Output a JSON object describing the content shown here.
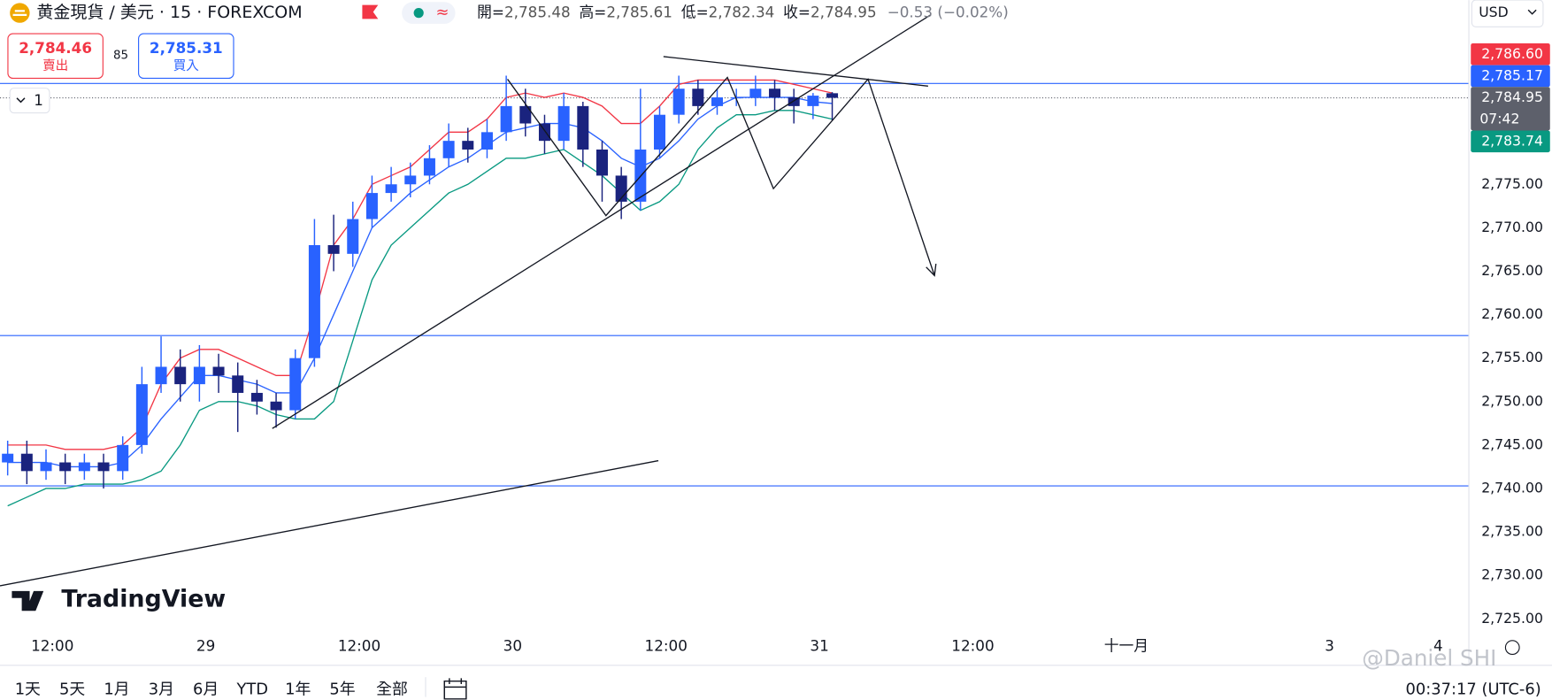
{
  "chart_data": {
    "type": "candlestick",
    "title": "黄金現貨 / 美元 · 15 · FOREXCOM",
    "x": [
      8.5,
      10,
      11.5,
      13,
      14.5,
      16,
      17.5,
      19,
      20.5,
      22,
      23.5,
      25,
      26.5,
      28,
      29.5,
      31,
      32.5,
      34,
      35.5,
      37,
      38.5,
      40,
      41.5,
      43,
      44.5,
      46,
      47.5,
      49,
      50.5,
      52,
      53.5,
      55,
      56.5,
      58,
      59.5,
      61,
      62.5,
      64,
      65.5,
      67,
      68.5,
      70,
      71.5,
      73
    ],
    "open": [
      2743,
      2744,
      2742,
      2743,
      2742,
      2743,
      2742,
      2745,
      2752,
      2754,
      2752,
      2754,
      2753,
      2751,
      2750,
      2749,
      2755,
      2768,
      2767,
      2771,
      2774,
      2775,
      2776,
      2778,
      2780,
      2779,
      2781,
      2784,
      2782,
      2780,
      2784,
      2779,
      2776,
      2773,
      2779,
      2783,
      2786,
      2784,
      2785,
      2785,
      2786,
      2785,
      2784,
      2785.48
    ],
    "high": [
      2745.5,
      2745.5,
      2744.5,
      2744,
      2744,
      2744,
      2746,
      2754,
      2757.5,
      2756,
      2756.5,
      2755.5,
      2754.5,
      2752.5,
      2751,
      2756,
      2771,
      2771.5,
      2773,
      2776,
      2777,
      2777.5,
      2779.5,
      2782,
      2781.5,
      2782.5,
      2787.5,
      2786,
      2783,
      2785.5,
      2784.5,
      2780,
      2777,
      2786,
      2784,
      2787.5,
      2787,
      2786,
      2786,
      2787.5,
      2787,
      2786,
      2785.5,
      2785.61
    ],
    "low": [
      2741.5,
      2740.5,
      2741,
      2740.5,
      2741,
      2740,
      2741,
      2744,
      2751,
      2750,
      2750,
      2751,
      2746.5,
      2748.5,
      2747,
      2748,
      2754,
      2765,
      2765.5,
      2770,
      2773,
      2773.5,
      2775,
      2777,
      2777.5,
      2778,
      2780,
      2780.5,
      2778.5,
      2779,
      2777,
      2773,
      2771,
      2772,
      2778,
      2782,
      2783,
      2783,
      2784,
      2784,
      2783.5,
      2782,
      2782.5,
      2782.34
    ],
    "close": [
      2744,
      2742,
      2743,
      2742,
      2743,
      2742,
      2745,
      2752,
      2754,
      2752,
      2754,
      2753,
      2751,
      2750,
      2749,
      2755,
      2768,
      2767,
      2771,
      2774,
      2775,
      2776,
      2778,
      2780,
      2779,
      2781,
      2784,
      2782,
      2780,
      2784,
      2779,
      2776,
      2773,
      2779,
      2783,
      2786,
      2784,
      2785,
      2785,
      2786,
      2785,
      2784,
      2785.2,
      2784.95
    ],
    "up_color": "#2962ff",
    "down_color": "#1a237e",
    "bands": [
      {
        "color": "#f23645",
        "values": [
          2745,
          2745,
          2745,
          2744.5,
          2744.5,
          2744.5,
          2745,
          2747,
          2752,
          2755,
          2756,
          2756,
          2755,
          2754,
          2753,
          2753,
          2760,
          2768,
          2771,
          2775,
          2776,
          2777,
          2779,
          2781,
          2781,
          2782.5,
          2785,
          2785.5,
          2785,
          2785.5,
          2785,
          2784,
          2782,
          2782,
          2784,
          2786.5,
          2787,
          2787,
          2787,
          2787,
          2787,
          2786.5,
          2786,
          2785.5
        ]
      },
      {
        "color": "#2962ff",
        "values": [
          2743,
          2743,
          2743,
          2742.5,
          2742.5,
          2742.5,
          2743,
          2745,
          2748,
          2750.5,
          2753,
          2753,
          2752.5,
          2752,
          2751,
          2751,
          2755,
          2760,
          2765,
          2770,
          2772,
          2774,
          2775.5,
          2777,
          2778,
          2779.5,
          2781,
          2781.5,
          2782,
          2782,
          2781.5,
          2780,
          2778,
          2777,
          2778,
          2780,
          2782.5,
          2784,
          2785,
          2785,
          2785,
          2785,
          2784.5,
          2784.3
        ]
      },
      {
        "color": "#089981",
        "values": [
          2738,
          2739,
          2740,
          2740,
          2740.5,
          2740.5,
          2740.5,
          2741,
          2742,
          2745,
          2749,
          2750,
          2750,
          2749.5,
          2748.5,
          2748,
          2748,
          2750,
          2757,
          2764,
          2768,
          2770,
          2772,
          2774,
          2775,
          2776.5,
          2778,
          2778,
          2778.5,
          2779,
          2777.5,
          2776,
          2774,
          2772,
          2773,
          2775,
          2779,
          2781.5,
          2783,
          2783,
          2783.5,
          2783.5,
          2783,
          2782.5
        ]
      }
    ],
    "hlines": [
      2786.6,
      2757.6,
      2740.3
    ],
    "hline_color": "#2962ff",
    "drawings": [
      {
        "points": [
          [
            7.9,
            2728.8
          ],
          [
            59.4,
            2743.2
          ]
        ]
      },
      {
        "points": [
          [
            29.2,
            2746.9
          ],
          [
            80.7,
            2794.5
          ]
        ]
      },
      {
        "points": [
          [
            47.6,
            2787.1
          ],
          [
            55.3,
            2771.4
          ],
          [
            64.8,
            2787.3
          ],
          [
            68.4,
            2774.5
          ],
          [
            75.8,
            2787.1
          ],
          [
            81.0,
            2764.5
          ]
        ],
        "arrow": true
      },
      {
        "points": [
          [
            59.8,
            2789.7
          ],
          [
            80.5,
            2786.3
          ]
        ]
      }
    ],
    "xlim": [
      7.9,
      122.8
    ],
    "ylim": [
      2723.3,
      2796.2
    ],
    "grid": false,
    "xticks": [
      {
        "value": 12,
        "label": "12:00"
      },
      {
        "value": 24,
        "label": "29"
      },
      {
        "value": 36,
        "label": "12:00"
      },
      {
        "value": 48,
        "label": "30"
      },
      {
        "value": 60,
        "label": "12:00"
      },
      {
        "value": 72,
        "label": "31"
      },
      {
        "value": 84,
        "label": "12:00"
      },
      {
        "value": 96,
        "label": "十一月"
      },
      {
        "value": 111.9,
        "label": "3"
      },
      {
        "value": 120.4,
        "label": "4"
      }
    ],
    "yticks": [
      {
        "value": 2725,
        "label": "2,725.00"
      },
      {
        "value": 2730,
        "label": "2,730.00"
      },
      {
        "value": 2735,
        "label": "2,735.00"
      },
      {
        "value": 2740,
        "label": "2,740.00"
      },
      {
        "value": 2745,
        "label": "2,745.00"
      },
      {
        "value": 2750,
        "label": "2,750.00"
      },
      {
        "value": 2755,
        "label": "2,755.00"
      },
      {
        "value": 2760,
        "label": "2,760.00"
      },
      {
        "value": 2765,
        "label": "2,765.00"
      },
      {
        "value": 2770,
        "label": "2,770.00"
      },
      {
        "value": 2775,
        "label": "2,775.00"
      }
    ],
    "price_tags": [
      {
        "value": 2786.6,
        "label": "2,786.60",
        "color": "#f23645"
      },
      {
        "value": 2785.17,
        "label": "2,785.17",
        "color": "#2962ff"
      },
      {
        "value": 2784.95,
        "label": "2,784.95",
        "sublabel": "07:42",
        "color": "#5d606b"
      },
      {
        "value": 2783.74,
        "label": "2,783.74",
        "color": "#089981"
      }
    ]
  },
  "header": {
    "ohlc": [
      {
        "label": "開=",
        "value": "2,785.48"
      },
      {
        "label": "高=",
        "value": "2,785.61"
      },
      {
        "label": "低=",
        "value": "2,782.34"
      },
      {
        "label": "收=",
        "value": "2,784.95"
      }
    ],
    "change": "−0.53 (−0.02%)"
  },
  "trade": {
    "sell_price": "2,784.46",
    "sell_label": "賣出",
    "spread": "85",
    "buy_price": "2,785.31",
    "buy_label": "買入"
  },
  "indicator_count": "1",
  "currency": "USD",
  "logo": "TradingView",
  "watermark": "@Daniel SHI",
  "ranges": [
    "1天",
    "5天",
    "1月",
    "3月",
    "6月",
    "YTD",
    "1年",
    "5年",
    "全部"
  ],
  "clock": "00:37:17 (UTC-6)"
}
